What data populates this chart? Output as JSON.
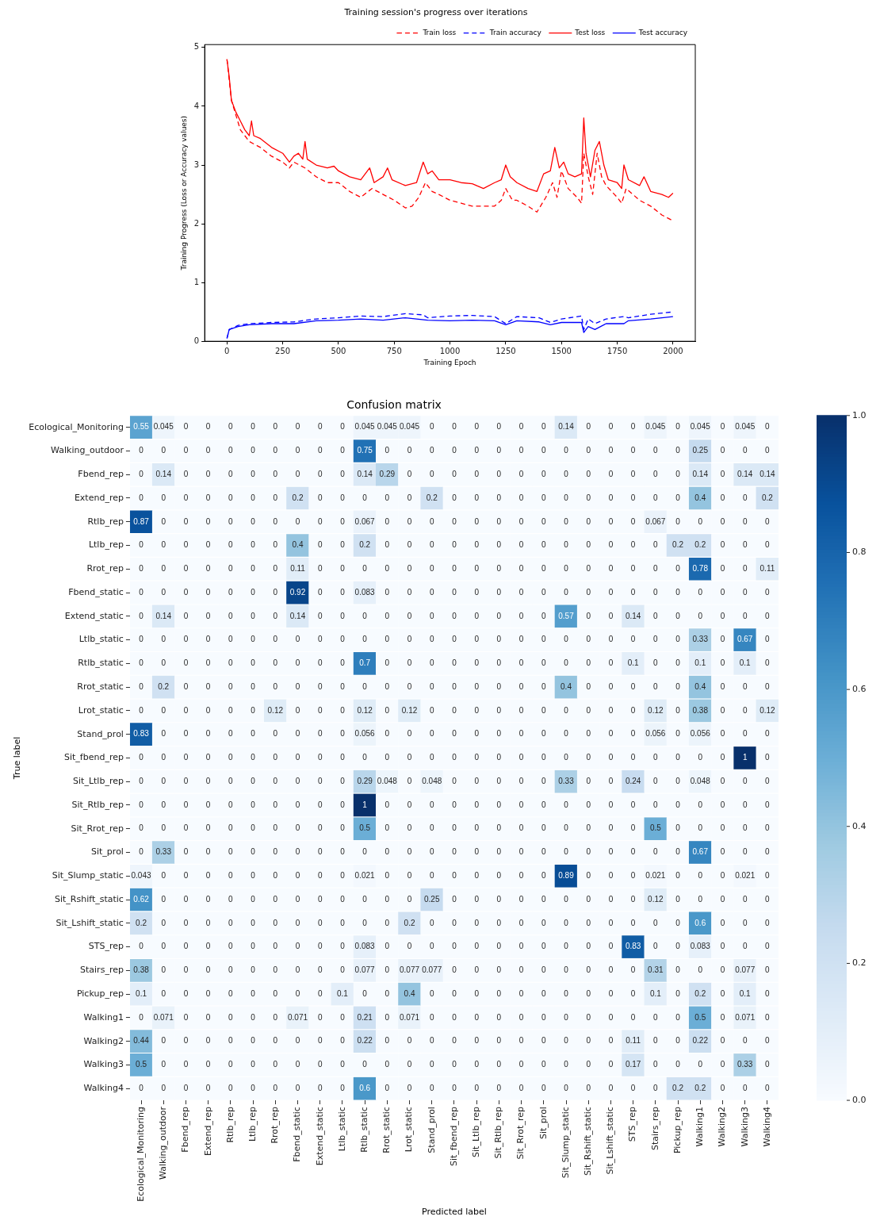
{
  "chart_data": [
    {
      "type": "line",
      "title": "Training session's progress over iterations",
      "xlabel": "Training Epoch",
      "ylabel": "Training Progress (Loss or Accuracy values)",
      "xlim": [
        -100,
        2100
      ],
      "ylim": [
        0,
        5.05
      ],
      "xticks": [
        0,
        250,
        500,
        750,
        1000,
        1250,
        1500,
        1750,
        2000
      ],
      "yticks": [
        0,
        1,
        2,
        3,
        4,
        5
      ],
      "legend": "top right",
      "series": [
        {
          "name": "Train loss",
          "color": "#ff0000",
          "line_style": "dashed",
          "x": [
            0,
            20,
            40,
            60,
            80,
            100,
            150,
            200,
            250,
            280,
            300,
            350,
            400,
            450,
            500,
            550,
            600,
            650,
            700,
            750,
            800,
            830,
            860,
            890,
            920,
            950,
            1000,
            1050,
            1100,
            1150,
            1200,
            1230,
            1250,
            1280,
            1300,
            1350,
            1390,
            1430,
            1460,
            1480,
            1500,
            1530,
            1570,
            1590,
            1600,
            1620,
            1640,
            1660,
            1680,
            1700,
            1750,
            1770,
            1790,
            1850,
            1900,
            1950,
            2000
          ],
          "values": [
            4.8,
            4.1,
            3.85,
            3.6,
            3.5,
            3.4,
            3.3,
            3.15,
            3.05,
            2.95,
            3.05,
            2.95,
            2.8,
            2.7,
            2.7,
            2.55,
            2.45,
            2.6,
            2.5,
            2.4,
            2.27,
            2.3,
            2.45,
            2.7,
            2.55,
            2.5,
            2.4,
            2.35,
            2.3,
            2.3,
            2.3,
            2.4,
            2.6,
            2.4,
            2.4,
            2.3,
            2.2,
            2.45,
            2.7,
            2.45,
            2.9,
            2.6,
            2.45,
            2.35,
            3.2,
            2.8,
            2.5,
            3.2,
            2.8,
            2.65,
            2.45,
            2.35,
            2.6,
            2.4,
            2.3,
            2.15,
            2.05
          ]
        },
        {
          "name": "Train accuracy",
          "color": "#0000ff",
          "line_style": "dashed",
          "x": [
            0,
            10,
            50,
            100,
            200,
            300,
            400,
            500,
            600,
            700,
            800,
            880,
            900,
            1000,
            1100,
            1200,
            1250,
            1300,
            1400,
            1450,
            1500,
            1590,
            1600,
            1620,
            1650,
            1700,
            1780,
            1800,
            1900,
            2000
          ],
          "values": [
            0.05,
            0.2,
            0.27,
            0.3,
            0.32,
            0.33,
            0.38,
            0.4,
            0.43,
            0.42,
            0.47,
            0.45,
            0.4,
            0.43,
            0.44,
            0.42,
            0.3,
            0.42,
            0.4,
            0.32,
            0.38,
            0.43,
            0.2,
            0.38,
            0.3,
            0.38,
            0.42,
            0.4,
            0.46,
            0.5
          ]
        },
        {
          "name": "Test loss",
          "color": "#ff0000",
          "line_style": "solid",
          "x": [
            0,
            10,
            20,
            40,
            60,
            80,
            100,
            110,
            120,
            150,
            200,
            250,
            280,
            300,
            320,
            340,
            350,
            360,
            400,
            450,
            480,
            500,
            550,
            600,
            640,
            660,
            700,
            720,
            740,
            800,
            850,
            880,
            900,
            920,
            950,
            1000,
            1050,
            1100,
            1150,
            1200,
            1230,
            1250,
            1270,
            1300,
            1350,
            1390,
            1420,
            1450,
            1470,
            1490,
            1510,
            1530,
            1560,
            1590,
            1600,
            1610,
            1630,
            1650,
            1670,
            1690,
            1710,
            1750,
            1770,
            1780,
            1800,
            1850,
            1870,
            1900,
            1950,
            1980,
            2000
          ],
          "values": [
            4.8,
            4.5,
            4.1,
            3.9,
            3.75,
            3.6,
            3.5,
            3.75,
            3.5,
            3.45,
            3.3,
            3.2,
            3.05,
            3.15,
            3.2,
            3.1,
            3.4,
            3.1,
            3.0,
            2.95,
            2.98,
            2.9,
            2.8,
            2.75,
            2.95,
            2.7,
            2.8,
            2.95,
            2.75,
            2.65,
            2.7,
            3.05,
            2.85,
            2.9,
            2.75,
            2.75,
            2.7,
            2.68,
            2.6,
            2.7,
            2.75,
            3.0,
            2.8,
            2.7,
            2.6,
            2.55,
            2.85,
            2.9,
            3.3,
            2.95,
            3.05,
            2.85,
            2.8,
            2.85,
            3.8,
            3.2,
            2.8,
            3.25,
            3.4,
            3.0,
            2.75,
            2.7,
            2.6,
            3.0,
            2.75,
            2.65,
            2.8,
            2.55,
            2.5,
            2.45,
            2.52
          ]
        },
        {
          "name": "Test accuracy",
          "color": "#0000ff",
          "line_style": "solid",
          "x": [
            0,
            10,
            50,
            100,
            200,
            300,
            400,
            500,
            600,
            700,
            800,
            900,
            1000,
            1100,
            1200,
            1250,
            1300,
            1400,
            1450,
            1500,
            1590,
            1600,
            1620,
            1650,
            1700,
            1780,
            1800,
            1900,
            2000
          ],
          "values": [
            0.05,
            0.2,
            0.25,
            0.28,
            0.3,
            0.3,
            0.35,
            0.36,
            0.38,
            0.36,
            0.4,
            0.36,
            0.35,
            0.36,
            0.35,
            0.28,
            0.35,
            0.33,
            0.28,
            0.32,
            0.32,
            0.15,
            0.25,
            0.2,
            0.3,
            0.3,
            0.35,
            0.38,
            0.42
          ]
        }
      ]
    },
    {
      "type": "heatmap",
      "title": "Confusion matrix",
      "xlabel": "Predicted label",
      "ylabel": "True label",
      "data_labels": true,
      "clim": [
        0,
        1
      ],
      "cticks": [
        {
          "value": 0,
          "label": "0.0"
        },
        {
          "value": 0.2,
          "label": "0.2"
        },
        {
          "value": 0.4,
          "label": "0.4"
        },
        {
          "value": 0.6,
          "label": "0.6"
        },
        {
          "value": 0.8,
          "label": "0.8"
        },
        {
          "value": 1,
          "label": "1.0"
        }
      ],
      "categories": [
        "Ecological_Monitoring",
        "Walking_outdoor",
        "Fbend_rep",
        "Extend_rep",
        "Rtlb_rep",
        "Ltlb_rep",
        "Rrot_rep",
        "Fbend_static",
        "Extend_static",
        "Ltlb_static",
        "Rtlb_static",
        "Rrot_static",
        "Lrot_static",
        "Stand_prol",
        "Sit_fbend_rep",
        "Sit_Ltlb_rep",
        "Sit_Rtlb_rep",
        "Sit_Rrot_rep",
        "Sit_prol",
        "Sit_Slump_static",
        "Sit_Rshift_static",
        "Sit_Lshift_static",
        "STS_rep",
        "Stairs_rep",
        "Pickup_rep",
        "Walking1",
        "Walking2",
        "Walking3",
        "Walking4"
      ],
      "y_categories": [
        "Ecological_Monitoring",
        "Walking_outdoor",
        "Fbend_rep",
        "Extend_rep",
        "Rtlb_rep",
        "Ltlb_rep",
        "Rrot_rep",
        "Fbend_static",
        "Extend_static",
        "Ltlb_static",
        "Rtlb_static",
        "Rrot_static",
        "Lrot_static",
        "Stand_prol",
        "Sit_fbend_rep",
        "Sit_Ltlb_rep",
        "Sit_Rtlb_rep",
        "Sit_Rrot_rep",
        "Sit_prol",
        "Sit_Slump_static",
        "Sit_Rshift_static",
        "Sit_Lshift_static",
        "STS_rep",
        "Stairs_rep",
        "Pickup_rep",
        "Walking1",
        "Walking2",
        "Walking3",
        "Walking4"
      ],
      "cells": [
        [
          0.55,
          0.045,
          0,
          0,
          0,
          0,
          0,
          0,
          0,
          0,
          0.045,
          0.045,
          0.045,
          0,
          0,
          0,
          0,
          0,
          0,
          0.14,
          0,
          0,
          0,
          0.045,
          0,
          0.045,
          0,
          0.045,
          0
        ],
        [
          0,
          0,
          0,
          0,
          0,
          0,
          0,
          0,
          0,
          0,
          0.75,
          0,
          0,
          0,
          0,
          0,
          0,
          0,
          0,
          0,
          0,
          0,
          0,
          0,
          0,
          0.25,
          0,
          0,
          0
        ],
        [
          0,
          0.14,
          0,
          0,
          0,
          0,
          0,
          0,
          0,
          0,
          0.14,
          0.29,
          0,
          0,
          0,
          0,
          0,
          0,
          0,
          0,
          0,
          0,
          0,
          0,
          0,
          0.14,
          0,
          0.14,
          0.14
        ],
        [
          0,
          0,
          0,
          0,
          0,
          0,
          0,
          0.2,
          0,
          0,
          0,
          0,
          0,
          0.2,
          0,
          0,
          0,
          0,
          0,
          0,
          0,
          0,
          0,
          0,
          0,
          0.4,
          0,
          0,
          0.2
        ],
        [
          0.87,
          0,
          0,
          0,
          0,
          0,
          0,
          0,
          0,
          0,
          0.067,
          0,
          0,
          0,
          0,
          0,
          0,
          0,
          0,
          0,
          0,
          0,
          0,
          0.067,
          0,
          0,
          0,
          0,
          0
        ],
        [
          0,
          0,
          0,
          0,
          0,
          0,
          0,
          0.4,
          0,
          0,
          0.2,
          0,
          0,
          0,
          0,
          0,
          0,
          0,
          0,
          0,
          0,
          0,
          0,
          0,
          0.2,
          0.2,
          0,
          0,
          0
        ],
        [
          0,
          0,
          0,
          0,
          0,
          0,
          0,
          0.11,
          0,
          0,
          0,
          0,
          0,
          0,
          0,
          0,
          0,
          0,
          0,
          0,
          0,
          0,
          0,
          0,
          0,
          0.78,
          0,
          0,
          0.11
        ],
        [
          0,
          0,
          0,
          0,
          0,
          0,
          0,
          0.92,
          0,
          0,
          0.083,
          0,
          0,
          0,
          0,
          0,
          0,
          0,
          0,
          0,
          0,
          0,
          0,
          0,
          0,
          0,
          0,
          0,
          0
        ],
        [
          0,
          0.14,
          0,
          0,
          0,
          0,
          0,
          0.14,
          0,
          0,
          0,
          0,
          0,
          0,
          0,
          0,
          0,
          0,
          0,
          0.57,
          0,
          0,
          0.14,
          0,
          0,
          0,
          0,
          0,
          0
        ],
        [
          0,
          0,
          0,
          0,
          0,
          0,
          0,
          0,
          0,
          0,
          0,
          0,
          0,
          0,
          0,
          0,
          0,
          0,
          0,
          0,
          0,
          0,
          0,
          0,
          0,
          0.33,
          0,
          0.67,
          0
        ],
        [
          0,
          0,
          0,
          0,
          0,
          0,
          0,
          0,
          0,
          0,
          0.7,
          0,
          0,
          0,
          0,
          0,
          0,
          0,
          0,
          0,
          0,
          0,
          0.1,
          0,
          0,
          0.1,
          0,
          0.1,
          0
        ],
        [
          0,
          0.2,
          0,
          0,
          0,
          0,
          0,
          0,
          0,
          0,
          0,
          0,
          0,
          0,
          0,
          0,
          0,
          0,
          0,
          0.4,
          0,
          0,
          0,
          0,
          0,
          0.4,
          0,
          0,
          0
        ],
        [
          0,
          0,
          0,
          0,
          0,
          0,
          0.12,
          0,
          0,
          0,
          0.12,
          0,
          0.12,
          0,
          0,
          0,
          0,
          0,
          0,
          0,
          0,
          0,
          0,
          0.12,
          0,
          0.38,
          0,
          0,
          0.12
        ],
        [
          0.83,
          0,
          0,
          0,
          0,
          0,
          0,
          0,
          0,
          0,
          0.056,
          0,
          0,
          0,
          0,
          0,
          0,
          0,
          0,
          0,
          0,
          0,
          0,
          0.056,
          0,
          0.056,
          0,
          0,
          0
        ],
        [
          0,
          0,
          0,
          0,
          0,
          0,
          0,
          0,
          0,
          0,
          0,
          0,
          0,
          0,
          0,
          0,
          0,
          0,
          0,
          0,
          0,
          0,
          0,
          0,
          0,
          0,
          0,
          1,
          0
        ],
        [
          0,
          0,
          0,
          0,
          0,
          0,
          0,
          0,
          0,
          0,
          0.29,
          0.048,
          0,
          0.048,
          0,
          0,
          0,
          0,
          0,
          0.33,
          0,
          0,
          0.24,
          0,
          0,
          0.048,
          0,
          0,
          0
        ],
        [
          0,
          0,
          0,
          0,
          0,
          0,
          0,
          0,
          0,
          0,
          1,
          0,
          0,
          0,
          0,
          0,
          0,
          0,
          0,
          0,
          0,
          0,
          0,
          0,
          0,
          0,
          0,
          0,
          0
        ],
        [
          0,
          0,
          0,
          0,
          0,
          0,
          0,
          0,
          0,
          0,
          0.5,
          0,
          0,
          0,
          0,
          0,
          0,
          0,
          0,
          0,
          0,
          0,
          0,
          0.5,
          0,
          0,
          0,
          0,
          0
        ],
        [
          0,
          0.33,
          0,
          0,
          0,
          0,
          0,
          0,
          0,
          0,
          0,
          0,
          0,
          0,
          0,
          0,
          0,
          0,
          0,
          0,
          0,
          0,
          0,
          0,
          0,
          0.67,
          0,
          0,
          0
        ],
        [
          0.043,
          0,
          0,
          0,
          0,
          0,
          0,
          0,
          0,
          0,
          0.021,
          0,
          0,
          0,
          0,
          0,
          0,
          0,
          0,
          0.89,
          0,
          0,
          0,
          0.021,
          0,
          0,
          0,
          0.021,
          0
        ],
        [
          0.62,
          0,
          0,
          0,
          0,
          0,
          0,
          0,
          0,
          0,
          0,
          0,
          0,
          0.25,
          0,
          0,
          0,
          0,
          0,
          0,
          0,
          0,
          0,
          0.12,
          0,
          0,
          0,
          0,
          0
        ],
        [
          0.2,
          0,
          0,
          0,
          0,
          0,
          0,
          0,
          0,
          0,
          0,
          0,
          0.2,
          0,
          0,
          0,
          0,
          0,
          0,
          0,
          0,
          0,
          0,
          0,
          0,
          0.6,
          0,
          0,
          0
        ],
        [
          0,
          0,
          0,
          0,
          0,
          0,
          0,
          0,
          0,
          0,
          0.083,
          0,
          0,
          0,
          0,
          0,
          0,
          0,
          0,
          0,
          0,
          0,
          0.83,
          0,
          0,
          0.083,
          0,
          0,
          0
        ],
        [
          0.38,
          0,
          0,
          0,
          0,
          0,
          0,
          0,
          0,
          0,
          0.077,
          0,
          0.077,
          0.077,
          0,
          0,
          0,
          0,
          0,
          0,
          0,
          0,
          0,
          0.31,
          0,
          0,
          0,
          0.077,
          0
        ],
        [
          0.1,
          0,
          0,
          0,
          0,
          0,
          0,
          0,
          0,
          0.1,
          0,
          0,
          0.4,
          0,
          0,
          0,
          0,
          0,
          0,
          0,
          0,
          0,
          0,
          0.1,
          0,
          0.2,
          0,
          0.1,
          0
        ],
        [
          0,
          0.071,
          0,
          0,
          0,
          0,
          0,
          0.071,
          0,
          0,
          0.21,
          0,
          0.071,
          0,
          0,
          0,
          0,
          0,
          0,
          0,
          0,
          0,
          0,
          0,
          0,
          0.5,
          0,
          0.071,
          0
        ],
        [
          0.44,
          0,
          0,
          0,
          0,
          0,
          0,
          0,
          0,
          0,
          0.22,
          0,
          0,
          0,
          0,
          0,
          0,
          0,
          0,
          0,
          0,
          0,
          0.11,
          0,
          0,
          0.22,
          0,
          0,
          0
        ],
        [
          0.5,
          0,
          0,
          0,
          0,
          0,
          0,
          0,
          0,
          0,
          0,
          0,
          0,
          0,
          0,
          0,
          0,
          0,
          0,
          0,
          0,
          0,
          0.17,
          0,
          0,
          0,
          0,
          0.33,
          0
        ],
        [
          0,
          0,
          0,
          0,
          0,
          0,
          0,
          0,
          0,
          0,
          0.6,
          0,
          0,
          0,
          0,
          0,
          0,
          0,
          0,
          0,
          0,
          0,
          0,
          0,
          0.2,
          0.2,
          0,
          0,
          0
        ]
      ]
    }
  ]
}
